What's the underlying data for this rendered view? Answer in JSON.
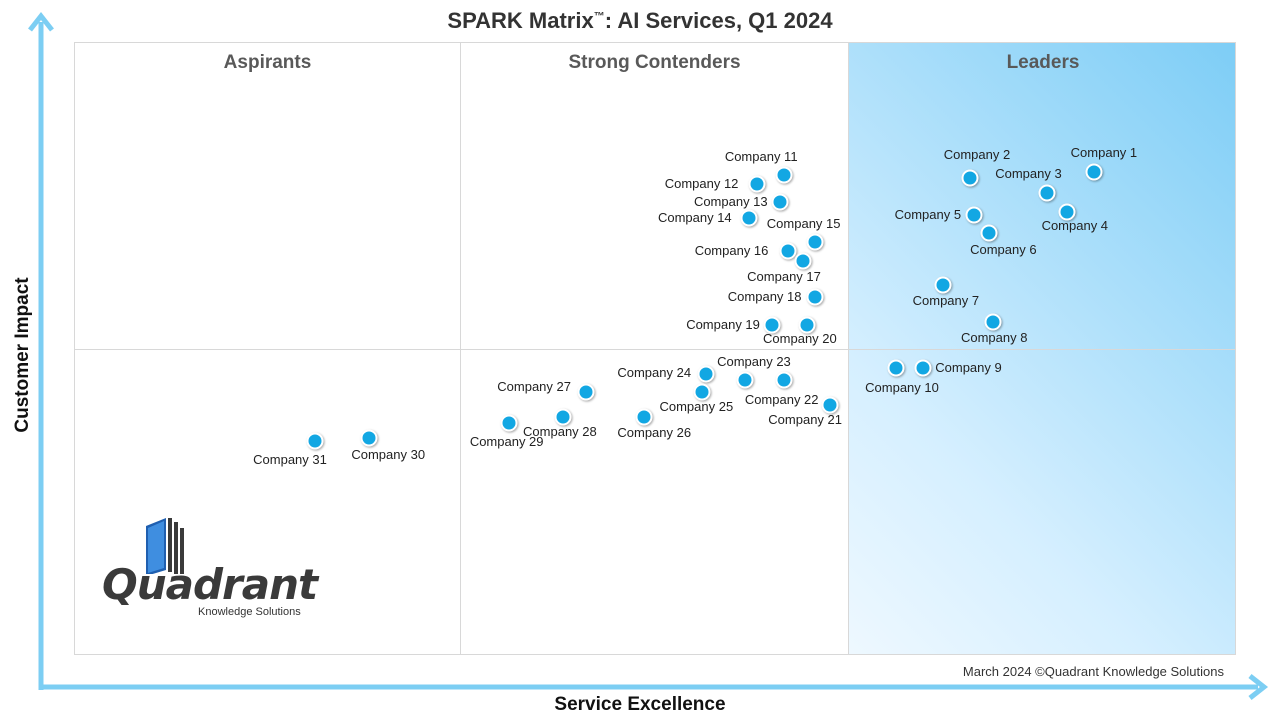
{
  "chart_data": {
    "type": "scatter",
    "title": "SPARK Matrix",
    "title_mark": "™",
    "title_rest": ": AI Services, Q1 2024",
    "xlabel": "Service Excellence",
    "ylabel": "Customer Impact",
    "xlim": [
      0,
      3
    ],
    "ylim": [
      0,
      2
    ],
    "grid": false,
    "quadrants": [
      "Aspirants",
      "Strong Contenders",
      "Leaders"
    ],
    "points": [
      {
        "label": "Company 1",
        "x": 2.63,
        "y": 1.58,
        "lx": -23,
        "ly": -27
      },
      {
        "label": "Company 2",
        "x": 2.31,
        "y": 1.56,
        "lx": -26,
        "ly": -31
      },
      {
        "label": "Company 3",
        "x": 2.51,
        "y": 1.51,
        "lx": -52,
        "ly": -27
      },
      {
        "label": "Company 4",
        "x": 2.56,
        "y": 1.45,
        "lx": -25,
        "ly": 6
      },
      {
        "label": "Company 5",
        "x": 2.32,
        "y": 1.44,
        "lx": -79,
        "ly": -8
      },
      {
        "label": "Company 6",
        "x": 2.36,
        "y": 1.38,
        "lx": -19,
        "ly": 9
      },
      {
        "label": "Company 7",
        "x": 2.24,
        "y": 1.21,
        "lx": -30,
        "ly": 8
      },
      {
        "label": "Company 8",
        "x": 2.37,
        "y": 1.09,
        "lx": -32,
        "ly": 8
      },
      {
        "label": "Company 9",
        "x": 2.19,
        "y": 0.94,
        "lx": 12,
        "ly": -8
      },
      {
        "label": "Company 10",
        "x": 2.12,
        "y": 0.94,
        "lx": -31,
        "ly": 12
      },
      {
        "label": "Company 11",
        "x": 1.83,
        "y": 1.57,
        "lx": -59,
        "ly": -26
      },
      {
        "label": "Company 12",
        "x": 1.76,
        "y": 1.54,
        "lx": -92,
        "ly": -8
      },
      {
        "label": "Company 13",
        "x": 1.82,
        "y": 1.48,
        "lx": -86,
        "ly": -8
      },
      {
        "label": "Company 14",
        "x": 1.74,
        "y": 1.43,
        "lx": -91,
        "ly": -8
      },
      {
        "label": "Company 15",
        "x": 1.91,
        "y": 1.35,
        "lx": -48,
        "ly": -26
      },
      {
        "label": "Company 16",
        "x": 1.84,
        "y": 1.32,
        "lx": -93,
        "ly": -8
      },
      {
        "label": "Company 17",
        "x": 1.88,
        "y": 1.29,
        "lx": -56,
        "ly": 8
      },
      {
        "label": "Company 18",
        "x": 1.91,
        "y": 1.17,
        "lx": -87,
        "ly": -8
      },
      {
        "label": "Company 19",
        "x": 1.8,
        "y": 1.08,
        "lx": -86,
        "ly": -8
      },
      {
        "label": "Company 20",
        "x": 1.89,
        "y": 1.08,
        "lx": -44,
        "ly": 6
      },
      {
        "label": "Company 21",
        "x": 1.95,
        "y": 0.82,
        "lx": -62,
        "ly": 7
      },
      {
        "label": "Company 22",
        "x": 1.83,
        "y": 0.9,
        "lx": -39,
        "ly": 12
      },
      {
        "label": "Company 23",
        "x": 1.73,
        "y": 0.9,
        "lx": -28,
        "ly": -26
      },
      {
        "label": "Company 24",
        "x": 1.63,
        "y": 0.92,
        "lx": -89,
        "ly": -9
      },
      {
        "label": "Company 25",
        "x": 1.62,
        "y": 0.86,
        "lx": -43,
        "ly": 7
      },
      {
        "label": "Company 26",
        "x": 1.47,
        "y": 0.78,
        "lx": -27,
        "ly": 8
      },
      {
        "label": "Company 27",
        "x": 1.32,
        "y": 0.86,
        "lx": -89,
        "ly": -13
      },
      {
        "label": "Company 28",
        "x": 1.26,
        "y": 0.78,
        "lx": -40,
        "ly": 7
      },
      {
        "label": "Company 29",
        "x": 1.12,
        "y": 0.76,
        "lx": -39,
        "ly": 11
      },
      {
        "label": "Company 30",
        "x": 0.76,
        "y": 0.71,
        "lx": -18,
        "ly": 9
      },
      {
        "label": "Company 31",
        "x": 0.62,
        "y": 0.7,
        "lx": -62,
        "ly": 11
      }
    ]
  },
  "logo": {
    "word": "Quadrant",
    "sub": "Knowledge Solutions"
  },
  "footer": {
    "copyright": "March 2024 ©Quadrant Knowledge Solutions"
  },
  "colors": {
    "point": "#12a7e3",
    "axis": "#7ccef3",
    "leaders": "#7dcdf6"
  }
}
